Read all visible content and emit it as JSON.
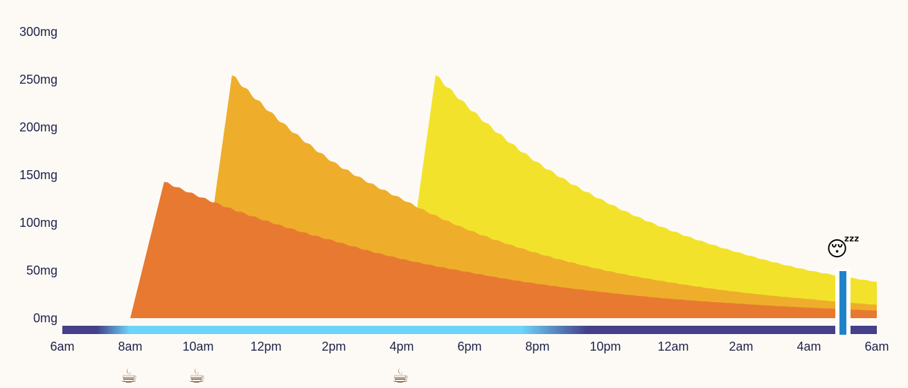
{
  "chart_data": {
    "type": "area",
    "title": "",
    "xlabel": "",
    "ylabel": "",
    "x_range_hours": [
      6,
      30
    ],
    "ylim": [
      0,
      300
    ],
    "y_ticks": [
      "0mg",
      "50mg",
      "100mg",
      "150mg",
      "200mg",
      "250mg",
      "300mg"
    ],
    "y_tick_values": [
      0,
      50,
      100,
      150,
      200,
      250,
      300
    ],
    "x_ticks": [
      "6am",
      "8am",
      "10am",
      "12pm",
      "2pm",
      "4pm",
      "6pm",
      "8pm",
      "10pm",
      "12am",
      "2am",
      "4am",
      "6am"
    ],
    "grid": false,
    "legend": "none",
    "series": [
      {
        "color": "#f3e22c",
        "points": [
          [
            16,
            0
          ],
          [
            17,
            255
          ],
          [
            18,
            220
          ],
          [
            20,
            163
          ],
          [
            22,
            122
          ],
          [
            24,
            91
          ],
          [
            26,
            68
          ],
          [
            28,
            50
          ],
          [
            30,
            38
          ]
        ]
      },
      {
        "color": "#eeae2b",
        "points": [
          [
            10,
            0
          ],
          [
            11,
            255
          ],
          [
            12,
            220
          ],
          [
            14,
            163
          ],
          [
            16,
            125
          ],
          [
            18,
            92
          ],
          [
            20,
            68
          ],
          [
            22,
            50
          ],
          [
            24,
            37
          ],
          [
            26,
            27
          ],
          [
            28,
            20
          ],
          [
            30,
            14
          ]
        ]
      },
      {
        "color": "#e77a30",
        "points": [
          [
            8,
            0
          ],
          [
            9,
            143
          ],
          [
            10,
            128
          ],
          [
            12,
            102
          ],
          [
            14,
            81
          ],
          [
            16,
            62
          ],
          [
            18,
            48
          ],
          [
            20,
            36
          ],
          [
            22,
            27
          ],
          [
            24,
            20
          ],
          [
            26,
            15
          ],
          [
            28,
            11
          ],
          [
            30,
            8
          ]
        ]
      }
    ],
    "daylight_bar": {
      "night_color": "#44408a",
      "day_color": "#6ed3f8",
      "day_start_hour": 7.5,
      "day_end_hour": 20.5
    },
    "sleep_hour": 29,
    "sleep_icon": "sleeping-face-icon",
    "sleep_glyph": "😴",
    "sleep_color": "#1f83c8",
    "coffee_hours": [
      8,
      10,
      16
    ],
    "coffee_icon": "coffee-cup-icon",
    "coffee_glyph": "☕"
  }
}
